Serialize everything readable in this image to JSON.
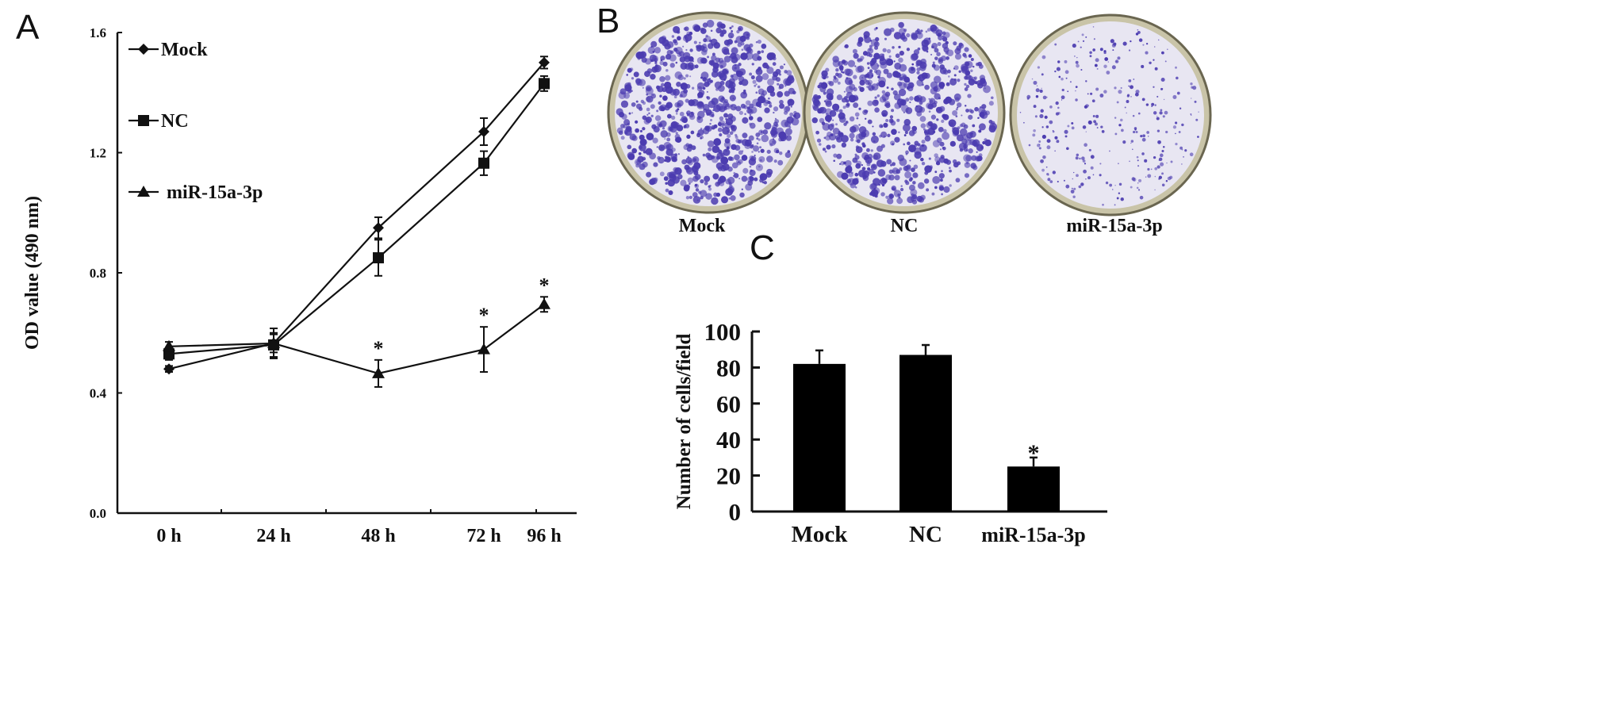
{
  "panels": {
    "a": "A",
    "b": "B",
    "c": "C"
  },
  "chart_data": [
    {
      "type": "line",
      "ylabel": "OD  value (490 nm)",
      "xlabel": "",
      "categories": [
        "0 h",
        "24 h",
        "48 h",
        "72 h",
        "96 h"
      ],
      "yticks": [
        "0.0",
        "0.4",
        "0.8",
        "1.2",
        "1.6"
      ],
      "ylim": [
        0,
        1.6
      ],
      "grid": false,
      "legend_position": "top-left",
      "series": [
        {
          "name": "Mock",
          "marker": "diamond",
          "values": [
            0.48,
            0.565,
            0.95,
            1.27,
            1.5
          ],
          "errors": [
            0.01,
            0.03,
            0.035,
            0.045,
            0.02
          ]
        },
        {
          "name": "NC",
          "marker": "square",
          "values": [
            0.53,
            0.56,
            0.85,
            1.165,
            1.43
          ],
          "errors": [
            0.02,
            0.04,
            0.06,
            0.04,
            0.025
          ]
        },
        {
          "name": "miR-15a-3p",
          "marker": "triangle",
          "values": [
            0.555,
            0.565,
            0.465,
            0.545,
            0.695
          ],
          "errors": [
            0.015,
            0.05,
            0.045,
            0.075,
            0.025
          ]
        }
      ],
      "annotations": [
        {
          "series": "miR-15a-3p",
          "x": "48 h",
          "text": "*"
        },
        {
          "series": "miR-15a-3p",
          "x": "72 h",
          "text": "*"
        },
        {
          "series": "miR-15a-3p",
          "x": "96 h",
          "text": "*"
        }
      ]
    },
    {
      "type": "bar",
      "ylabel": "Number of cells/field",
      "xlabel": "",
      "categories": [
        "Mock",
        "NC",
        "miR-15a-3p"
      ],
      "values": [
        82,
        87,
        25
      ],
      "errors": [
        7.5,
        5.5,
        5
      ],
      "yticks": [
        "0",
        "20",
        "40",
        "60",
        "80",
        "100"
      ],
      "ylim": [
        0,
        100
      ],
      "grid": false,
      "bar_color": "#000000",
      "annotations": [
        {
          "x": "miR-15a-3p",
          "text": "*"
        }
      ]
    }
  ],
  "plates": {
    "labels": [
      "Mock",
      "NC",
      "miR-15a-3p"
    ],
    "colony_density": [
      0.9,
      0.85,
      0.35
    ],
    "stain_color": "#4b3bb0",
    "background_color": "#e8e6f2"
  }
}
